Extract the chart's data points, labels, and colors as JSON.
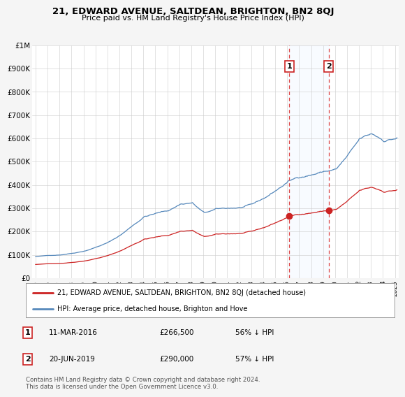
{
  "title": "21, EDWARD AVENUE, SALTDEAN, BRIGHTON, BN2 8QJ",
  "subtitle": "Price paid vs. HM Land Registry's House Price Index (HPI)",
  "hpi_color": "#5588bb",
  "sale_color": "#cc2222",
  "vline_color": "#dd4444",
  "fill_color": "#ddeeff",
  "marker_box_color": "#cc2222",
  "ylim_min": 0,
  "ylim_max": 1000000,
  "xlim_min": 1994.7,
  "xlim_max": 2025.3,
  "ytick_values": [
    0,
    100000,
    200000,
    300000,
    400000,
    500000,
    600000,
    700000,
    800000,
    900000,
    1000000
  ],
  "ytick_labels": [
    "£0",
    "£100K",
    "£200K",
    "£300K",
    "£400K",
    "£500K",
    "£600K",
    "£700K",
    "£800K",
    "£900K",
    "£1M"
  ],
  "xtick_years": [
    1995,
    1996,
    1997,
    1998,
    1999,
    2000,
    2001,
    2002,
    2003,
    2004,
    2005,
    2006,
    2007,
    2008,
    2009,
    2010,
    2011,
    2012,
    2013,
    2014,
    2015,
    2016,
    2017,
    2018,
    2019,
    2020,
    2021,
    2022,
    2023,
    2024,
    2025
  ],
  "sale_year1": 2016.19,
  "sale_value1": 266500,
  "sale_year2": 2019.47,
  "sale_value2": 290000,
  "legend_line1": "21, EDWARD AVENUE, SALTDEAN, BRIGHTON, BN2 8QJ (detached house)",
  "legend_line2": "HPI: Average price, detached house, Brighton and Hove",
  "note1_label": "1",
  "note1_date": "11-MAR-2016",
  "note1_price": "£266,500",
  "note1_pct": "56% ↓ HPI",
  "note2_label": "2",
  "note2_date": "20-JUN-2019",
  "note2_price": "£290,000",
  "note2_pct": "57% ↓ HPI",
  "footer": "Contains HM Land Registry data © Crown copyright and database right 2024.\nThis data is licensed under the Open Government Licence v3.0.",
  "background_color": "#f5f5f5",
  "plot_bg_color": "#ffffff"
}
